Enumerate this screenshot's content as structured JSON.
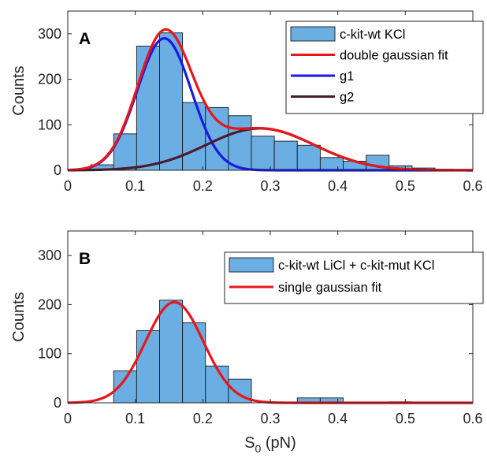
{
  "chart_data": [
    {
      "type": "bar",
      "panel": "A",
      "ylabel": "Counts",
      "xlim": [
        0,
        0.6
      ],
      "ylim": [
        0,
        350
      ],
      "xticks": [
        "0",
        "0.1",
        "0.2",
        "0.3",
        "0.4",
        "0.5",
        "0.6"
      ],
      "yticks": [
        "0",
        "100",
        "200",
        "300"
      ],
      "bin_edges": [
        0.034,
        0.068,
        0.102,
        0.136,
        0.17,
        0.204,
        0.238,
        0.272,
        0.306,
        0.34,
        0.374,
        0.408,
        0.442,
        0.476,
        0.51,
        0.544
      ],
      "counts": [
        12,
        80,
        273,
        302,
        149,
        138,
        120,
        75,
        64,
        55,
        28,
        20,
        33,
        10,
        5
      ],
      "bar_color": "#6aaee3",
      "legend_position": "top-right",
      "legend": [
        {
          "label": "c-kit-wt KCl",
          "kind": "patch",
          "color": "#6aaee3"
        },
        {
          "label": "double gaussian fit",
          "kind": "line",
          "color": "#e8161b"
        },
        {
          "label": "g1",
          "kind": "line",
          "color": "#1a1ae6"
        },
        {
          "label": "g2",
          "kind": "line",
          "color": "#4a1c2e"
        }
      ],
      "curves": [
        {
          "name": "g1",
          "color": "#1a1ae6",
          "components": [
            {
              "amp": 290,
              "mu": 0.143,
              "sigma": 0.04
            }
          ]
        },
        {
          "name": "g2",
          "color": "#4a1c2e",
          "components": [
            {
              "amp": 92,
              "mu": 0.285,
              "sigma": 0.08
            }
          ]
        },
        {
          "name": "double gaussian fit",
          "color": "#e8161b",
          "components": [
            {
              "amp": 290,
              "mu": 0.143,
              "sigma": 0.04
            },
            {
              "amp": 92,
              "mu": 0.285,
              "sigma": 0.08
            }
          ]
        }
      ]
    },
    {
      "type": "bar",
      "panel": "B",
      "xlabel": "S",
      "xlabel_sub": "0",
      "xlabel_unit": " (pN)",
      "ylabel": "Counts",
      "xlim": [
        0,
        0.6
      ],
      "ylim": [
        0,
        350
      ],
      "xticks": [
        "0",
        "0.1",
        "0.2",
        "0.3",
        "0.4",
        "0.5",
        "0.6"
      ],
      "yticks": [
        "0",
        "100",
        "200",
        "300"
      ],
      "bin_edges": [
        0.068,
        0.102,
        0.136,
        0.17,
        0.204,
        0.238,
        0.272,
        0.306,
        0.34,
        0.374,
        0.408,
        0.442,
        0.476,
        0.51
      ],
      "counts": [
        65,
        147,
        209,
        163,
        75,
        48,
        0,
        0,
        10,
        10,
        0,
        0,
        2
      ],
      "bar_color": "#6aaee3",
      "legend_position": "top-right",
      "legend": [
        {
          "label": "c-kit-wt LiCl + c-kit-mut KCl",
          "kind": "patch",
          "color": "#6aaee3"
        },
        {
          "label": "single gaussian fit",
          "kind": "line",
          "color": "#e8161b"
        }
      ],
      "curves": [
        {
          "name": "single gaussian fit",
          "color": "#e8161b",
          "components": [
            {
              "amp": 205,
              "mu": 0.158,
              "sigma": 0.043
            }
          ]
        }
      ]
    }
  ]
}
